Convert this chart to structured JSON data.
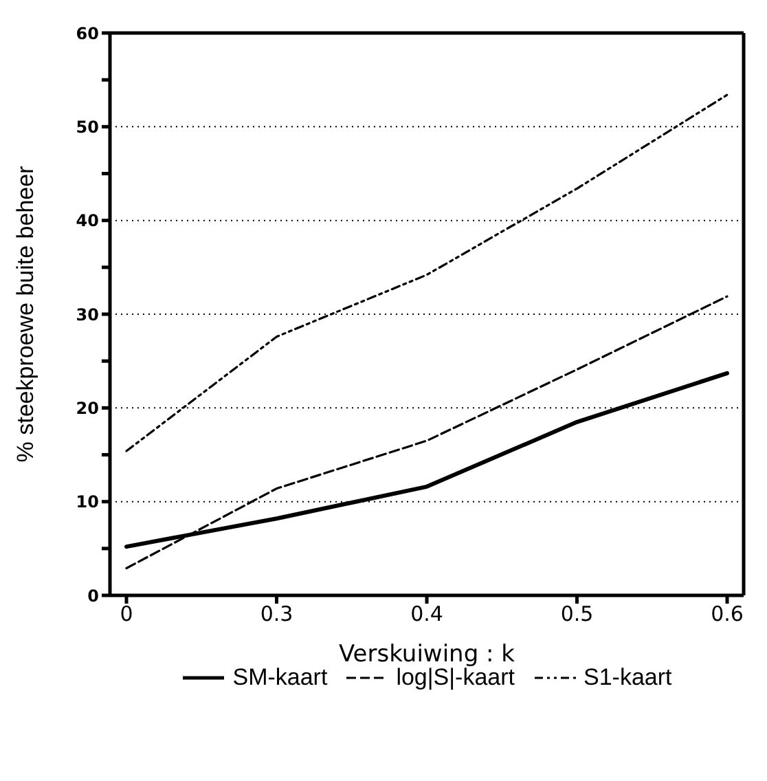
{
  "chart_data": {
    "type": "line",
    "xlabel": "Verskuiwing : k",
    "ylabel": "% steekproewe buite beheer",
    "categories": [
      "0",
      "0.3",
      "0.4",
      "0.5",
      "0.6"
    ],
    "series": [
      {
        "name": "SM-kaart",
        "color": "#000000",
        "line_style": "solid",
        "values": [
          5.2,
          8.2,
          11.6,
          18.5,
          23.7
        ]
      },
      {
        "name": "log|S|-kaart",
        "color": "#000000",
        "line_style": "dashed",
        "values": [
          2.9,
          11.4,
          16.5,
          24.1,
          31.9
        ]
      },
      {
        "name": "S1-kaart",
        "color": "#000000",
        "line_style": "dashdot",
        "values": [
          15.4,
          27.6,
          34.2,
          43.4,
          53.4
        ]
      }
    ],
    "ylim": [
      0,
      60
    ],
    "yticks": [
      0,
      {
        "value": 5,
        "label": null
      },
      10,
      {
        "value": 15,
        "label": null
      },
      20,
      {
        "value": 25,
        "label": null
      },
      30,
      {
        "value": 35,
        "label": null
      },
      40,
      {
        "value": 45,
        "label": null
      },
      50,
      {
        "value": 55,
        "label": null
      },
      60
    ],
    "grid": "y",
    "legend": "bottom",
    "marker": "none"
  }
}
